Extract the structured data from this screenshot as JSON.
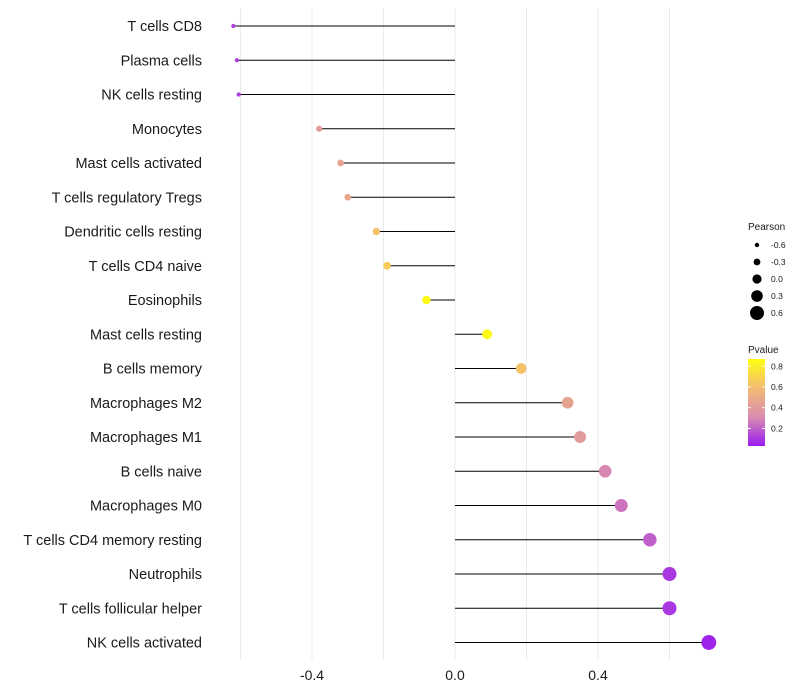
{
  "chart_data": {
    "type": "lollipop",
    "title": "",
    "xlabel": "",
    "ylabel": "",
    "xlim": [
      -0.62,
      0.72
    ],
    "x_ticks": [
      -0.4,
      0.0,
      0.4
    ],
    "x_tick_labels": [
      "-0.4",
      "0.0",
      "0.4"
    ],
    "grid": true,
    "legend_placement": "right",
    "categories": [
      "T cells CD8",
      "Plasma cells",
      "NK cells resting",
      "Monocytes",
      "Mast cells activated",
      "T cells regulatory  Tregs",
      "Dendritic cells resting",
      "T cells CD4 naive",
      "Eosinophils",
      "Mast cells resting",
      "B cells memory",
      "Macrophages M2",
      "Macrophages M1",
      "B cells naive",
      "Macrophages M0",
      "T cells CD4 memory resting",
      "Neutrophils",
      "T cells follicular helper",
      "NK cells activated"
    ],
    "values": [
      -0.62,
      -0.61,
      -0.605,
      -0.38,
      -0.32,
      -0.3,
      -0.22,
      -0.19,
      -0.08,
      0.09,
      0.185,
      0.315,
      0.35,
      0.42,
      0.465,
      0.545,
      0.6,
      0.6,
      0.71
    ],
    "pvalues": [
      0.12,
      0.12,
      0.12,
      0.4,
      0.45,
      0.48,
      0.62,
      0.66,
      0.85,
      0.85,
      0.62,
      0.45,
      0.4,
      0.3,
      0.25,
      0.2,
      0.1,
      0.1,
      0.05
    ],
    "legend_size": {
      "title": "Pearson",
      "values": [
        -0.6,
        -0.3,
        0.0,
        0.3,
        0.6
      ],
      "labels": [
        "-0.6",
        "-0.3",
        "0.0",
        "0.3",
        "0.6"
      ]
    },
    "legend_color": {
      "title": "Pvalue",
      "range": [
        0.03,
        0.87
      ],
      "ticks": [
        0.2,
        0.4,
        0.6,
        0.8
      ],
      "labels": [
        "0.2",
        "0.4",
        "0.6",
        "0.8"
      ],
      "colors": [
        "#9a1cf0",
        "#d98cb0",
        "#f3ba73",
        "#ffff10"
      ]
    },
    "colors": {
      "stem": "#000000",
      "grid": "#ebebeb",
      "legend_dot": "#000000"
    }
  }
}
